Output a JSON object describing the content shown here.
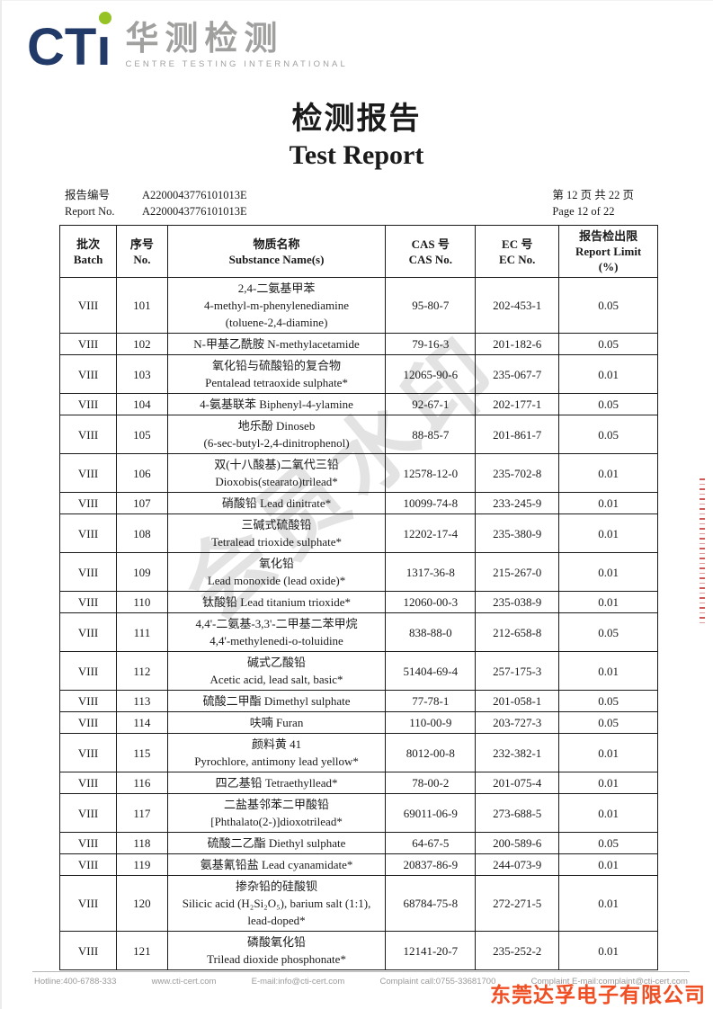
{
  "logo": {
    "initials": "CTı",
    "cn": "华测检测",
    "en": "CENTRE TESTING INTERNATIONAL"
  },
  "header": {
    "title_cn": "检测报告",
    "title_en": "Test Report"
  },
  "meta": {
    "report_no_label_cn": "报告编号",
    "report_no_label_en": "Report No.",
    "report_no_cn": "A2200043776101013E",
    "report_no_en": "A2200043776101013E",
    "page_cn": "第 12 页 共 22 页",
    "page_en": "Page 12 of 22"
  },
  "table": {
    "columns": [
      {
        "lines": [
          "批次",
          "Batch"
        ]
      },
      {
        "lines": [
          "序号",
          "No."
        ]
      },
      {
        "lines": [
          "物质名称",
          "Substance Name(s)"
        ]
      },
      {
        "lines": [
          "CAS 号",
          "CAS No."
        ]
      },
      {
        "lines": [
          "EC 号",
          "EC No."
        ]
      },
      {
        "lines": [
          "报告检出限",
          "Report Limit",
          "(%)"
        ]
      }
    ],
    "rows": [
      {
        "batch": "VIII",
        "no": "101",
        "substance_lines": [
          "2,4-二氨基甲苯",
          "4-methyl-m-phenylenediamine",
          "(toluene-2,4-diamine)"
        ],
        "cas_no": "95-80-7",
        "ec_no": "202-453-1",
        "report_limit": "0.05"
      },
      {
        "batch": "VIII",
        "no": "102",
        "substance_lines": [
          "N-甲基乙酰胺 N-methylacetamide"
        ],
        "cas_no": "79-16-3",
        "ec_no": "201-182-6",
        "report_limit": "0.05"
      },
      {
        "batch": "VIII",
        "no": "103",
        "substance_lines": [
          "氧化铅与硫酸铅的复合物",
          "Pentalead tetraoxide sulphate*"
        ],
        "cas_no": "12065-90-6",
        "ec_no": "235-067-7",
        "report_limit": "0.01"
      },
      {
        "batch": "VIII",
        "no": "104",
        "substance_lines": [
          "4-氨基联苯 Biphenyl-4-ylamine"
        ],
        "cas_no": "92-67-1",
        "ec_no": "202-177-1",
        "report_limit": "0.05"
      },
      {
        "batch": "VIII",
        "no": "105",
        "substance_lines": [
          "地乐酚 Dinoseb",
          "(6-sec-butyl-2,4-dinitrophenol)"
        ],
        "cas_no": "88-85-7",
        "ec_no": "201-861-7",
        "report_limit": "0.05"
      },
      {
        "batch": "VIII",
        "no": "106",
        "substance_lines": [
          "双(十八酸基)二氧代三铅",
          "Dioxobis(stearato)trilead*"
        ],
        "cas_no": "12578-12-0",
        "ec_no": "235-702-8",
        "report_limit": "0.01"
      },
      {
        "batch": "VIII",
        "no": "107",
        "substance_lines": [
          "硝酸铅 Lead dinitrate*"
        ],
        "cas_no": "10099-74-8",
        "ec_no": "233-245-9",
        "report_limit": "0.01"
      },
      {
        "batch": "VIII",
        "no": "108",
        "substance_lines": [
          "三碱式硫酸铅",
          "Tetralead trioxide sulphate*"
        ],
        "cas_no": "12202-17-4",
        "ec_no": "235-380-9",
        "report_limit": "0.01"
      },
      {
        "batch": "VIII",
        "no": "109",
        "substance_lines": [
          "氧化铅",
          "Lead monoxide (lead oxide)*"
        ],
        "cas_no": "1317-36-8",
        "ec_no": "215-267-0",
        "report_limit": "0.01"
      },
      {
        "batch": "VIII",
        "no": "110",
        "substance_lines": [
          "钛酸铅 Lead titanium trioxide*"
        ],
        "cas_no": "12060-00-3",
        "ec_no": "235-038-9",
        "report_limit": "0.01"
      },
      {
        "batch": "VIII",
        "no": "111",
        "substance_lines": [
          "4,4'-二氨基-3,3'-二甲基二苯甲烷",
          "4,4'-methylenedi-o-toluidine"
        ],
        "cas_no": "838-88-0",
        "ec_no": "212-658-8",
        "report_limit": "0.05"
      },
      {
        "batch": "VIII",
        "no": "112",
        "substance_lines": [
          "碱式乙酸铅",
          "Acetic acid, lead salt, basic*"
        ],
        "cas_no": "51404-69-4",
        "ec_no": "257-175-3",
        "report_limit": "0.01"
      },
      {
        "batch": "VIII",
        "no": "113",
        "substance_lines": [
          "硫酸二甲酯 Dimethyl sulphate"
        ],
        "cas_no": "77-78-1",
        "ec_no": "201-058-1",
        "report_limit": "0.05"
      },
      {
        "batch": "VIII",
        "no": "114",
        "substance_lines": [
          "呋喃 Furan"
        ],
        "cas_no": "110-00-9",
        "ec_no": "203-727-3",
        "report_limit": "0.05"
      },
      {
        "batch": "VIII",
        "no": "115",
        "substance_lines": [
          "颜料黄 41",
          "Pyrochlore, antimony lead yellow*"
        ],
        "cas_no": "8012-00-8",
        "ec_no": "232-382-1",
        "report_limit": "0.01"
      },
      {
        "batch": "VIII",
        "no": "116",
        "substance_lines": [
          "四乙基铅 Tetraethyllead*"
        ],
        "cas_no": "78-00-2",
        "ec_no": "201-075-4",
        "report_limit": "0.01"
      },
      {
        "batch": "VIII",
        "no": "117",
        "substance_lines": [
          "二盐基邻苯二甲酸铅",
          "[Phthalato(2-)]dioxotrilead*"
        ],
        "cas_no": "69011-06-9",
        "ec_no": "273-688-5",
        "report_limit": "0.01"
      },
      {
        "batch": "VIII",
        "no": "118",
        "substance_lines": [
          "硫酸二乙酯 Diethyl sulphate"
        ],
        "cas_no": "64-67-5",
        "ec_no": "200-589-6",
        "report_limit": "0.05"
      },
      {
        "batch": "VIII",
        "no": "119",
        "substance_lines": [
          "氨基氰铅盐 Lead cyanamidate*"
        ],
        "cas_no": "20837-86-9",
        "ec_no": "244-073-9",
        "report_limit": "0.01"
      },
      {
        "batch": "VIII",
        "no": "120",
        "substance_lines": [
          "掺杂铅的硅酸钡",
          "Silicic acid (H₂Si₂O₅), barium salt (1:1),",
          "lead-doped*"
        ],
        "cas_no": "68784-75-8",
        "ec_no": "272-271-5",
        "report_limit": "0.01"
      },
      {
        "batch": "VIII",
        "no": "121",
        "substance_lines": [
          "磷酸氧化铅",
          "Trilead dioxide phosphonate*"
        ],
        "cas_no": "12141-20-7",
        "ec_no": "235-252-2",
        "report_limit": "0.01"
      }
    ]
  },
  "watermarks": {
    "diagonal_text": "会员水印",
    "company_text": "东莞达孚电子有限公司"
  },
  "footer": {
    "items": [
      "Hotline:400-6788-333",
      "www.cti-cert.com",
      "E-mail:info@cti-cert.com",
      "Complaint call:0755-33681700",
      "Complaint E-mail:complaint@cti-cert.com"
    ]
  },
  "colors": {
    "logo_navy": "#223a67",
    "logo_green": "#95c225",
    "logo_gray": "#a0a09f",
    "company_orange": "#f04e23",
    "stamp_red": "#be2323",
    "watermark_gray": "#e3e3e3",
    "footer_gray": "#9a9a9a"
  }
}
